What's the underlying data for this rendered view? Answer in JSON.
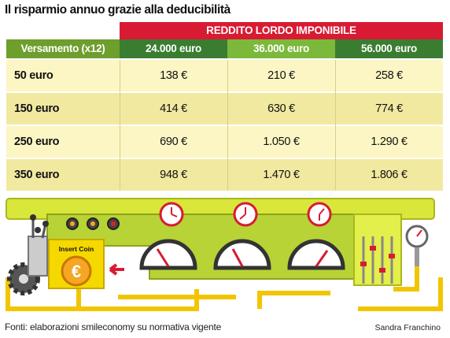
{
  "title": "Il risparmio annuo grazie alla deducibilità",
  "table": {
    "band_label": "REDDITO LORDO IMPONIBILE",
    "first_header": "Versamento (x12)",
    "columns": [
      "24.000 euro",
      "36.000 euro",
      "56.000 euro"
    ],
    "rows": [
      {
        "label": "50 euro",
        "values": [
          "138 €",
          "210 €",
          "258 €"
        ]
      },
      {
        "label": "150 euro",
        "values": [
          "414 €",
          "630 €",
          "774 €"
        ]
      },
      {
        "label": "250 euro",
        "values": [
          "690 €",
          "1.050 €",
          "1.290 €"
        ]
      },
      {
        "label": "350 euro",
        "values": [
          "948 €",
          "1.470 €",
          "1.806 €"
        ]
      }
    ]
  },
  "illustration": {
    "coin_label": "Insert Coin",
    "coin_symbol": "€",
    "colors": {
      "frame": "#d9e63a",
      "panel": "#b7d335",
      "pipe": "#f2c500",
      "accent": "#d81b33"
    }
  },
  "footer": {
    "sources": "Fonti: elaborazioni smileconomy su normativa vigente",
    "author": "Sandra Franchino"
  }
}
